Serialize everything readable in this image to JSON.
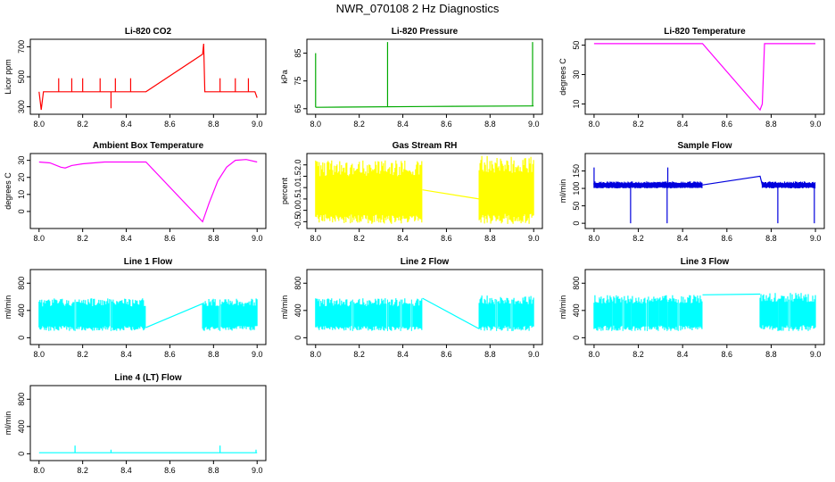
{
  "figure": {
    "title": "NWR_070108  2 Hz Diagnostics"
  },
  "chart_data": [
    {
      "id": "li820-co2",
      "type": "line",
      "title": "Li-820 CO2",
      "ylabel": "Licor ppm",
      "color": "#ff0000",
      "xlim": [
        7.96,
        9.04
      ],
      "ylim": [
        250,
        750
      ],
      "xticks": [
        8.0,
        8.2,
        8.4,
        8.6,
        8.8,
        9.0
      ],
      "xtick_labels": [
        "8.0",
        "8.2",
        "8.4",
        "8.6",
        "8.8",
        "9.0"
      ],
      "yticks": [
        300,
        500,
        700
      ],
      "ytick_labels": [
        "300",
        "500",
        "700"
      ],
      "series": [
        {
          "name": "CO2",
          "x": [
            8.0,
            8.01,
            8.02,
            8.49,
            8.75,
            8.755,
            8.76,
            8.99,
            9.0
          ],
          "y": [
            400,
            280,
            400,
            400,
            650,
            720,
            400,
            400,
            360
          ]
        }
      ],
      "spikes": [
        {
          "x": 8.09,
          "from": 400,
          "to": 490
        },
        {
          "x": 8.15,
          "from": 400,
          "to": 490
        },
        {
          "x": 8.2,
          "from": 400,
          "to": 490
        },
        {
          "x": 8.28,
          "from": 400,
          "to": 490
        },
        {
          "x": 8.33,
          "from": 400,
          "to": 290
        },
        {
          "x": 8.35,
          "from": 400,
          "to": 490
        },
        {
          "x": 8.42,
          "from": 400,
          "to": 490
        },
        {
          "x": 8.83,
          "from": 400,
          "to": 490
        },
        {
          "x": 8.9,
          "from": 400,
          "to": 490
        },
        {
          "x": 8.96,
          "from": 400,
          "to": 490
        }
      ]
    },
    {
      "id": "li820-pressure",
      "type": "line",
      "title": "Li-820 Pressure",
      "ylabel": "kPa",
      "color": "#00aa00",
      "xlim": [
        7.96,
        9.04
      ],
      "ylim": [
        63,
        90
      ],
      "xticks": [
        8.0,
        8.2,
        8.4,
        8.6,
        8.8,
        9.0
      ],
      "xtick_labels": [
        "8.0",
        "8.2",
        "8.4",
        "8.6",
        "8.8",
        "9.0"
      ],
      "yticks": [
        65,
        75,
        85
      ],
      "ytick_labels": [
        "65",
        "75",
        "85"
      ],
      "series": [
        {
          "name": "Pressure",
          "x": [
            8.0,
            8.02,
            8.5,
            8.99,
            9.0
          ],
          "y": [
            65.5,
            65.5,
            65.8,
            66.0,
            66.0
          ]
        }
      ],
      "spikes": [
        {
          "x": 8.0,
          "from": 65.5,
          "to": 85
        },
        {
          "x": 8.33,
          "from": 65.6,
          "to": 89
        },
        {
          "x": 8.995,
          "from": 66,
          "to": 89
        }
      ]
    },
    {
      "id": "li820-temperature",
      "type": "line",
      "title": "Li-820 Temperature",
      "ylabel": "degrees C",
      "color": "#ff00ff",
      "xlim": [
        7.96,
        9.04
      ],
      "ylim": [
        3,
        54
      ],
      "xticks": [
        8.0,
        8.2,
        8.4,
        8.6,
        8.8,
        9.0
      ],
      "xtick_labels": [
        "8.0",
        "8.2",
        "8.4",
        "8.6",
        "8.8",
        "9.0"
      ],
      "yticks": [
        10,
        30,
        50
      ],
      "ytick_labels": [
        "10",
        "30",
        "50"
      ],
      "series": [
        {
          "name": "Temperature",
          "x": [
            8.0,
            8.49,
            8.75,
            8.76,
            8.77,
            9.0
          ],
          "y": [
            51,
            51,
            6,
            10,
            51,
            51
          ]
        }
      ]
    },
    {
      "id": "ambient-box-temperature",
      "type": "line",
      "title": "Ambient Box Temperature",
      "ylabel": "degrees C",
      "color": "#ff00ff",
      "xlim": [
        7.96,
        9.04
      ],
      "ylim": [
        -10,
        34
      ],
      "xticks": [
        8.0,
        8.2,
        8.4,
        8.6,
        8.8,
        9.0
      ],
      "xtick_labels": [
        "8.0",
        "8.2",
        "8.4",
        "8.6",
        "8.8",
        "9.0"
      ],
      "yticks": [
        0,
        10,
        20,
        30
      ],
      "ytick_labels": [
        "0",
        "10",
        "20",
        "30"
      ],
      "series": [
        {
          "name": "Temperature",
          "x": [
            8.0,
            8.05,
            8.1,
            8.12,
            8.15,
            8.2,
            8.3,
            8.4,
            8.49,
            8.75,
            8.78,
            8.82,
            8.86,
            8.9,
            8.95,
            9.0
          ],
          "y": [
            29,
            28.5,
            26,
            25.5,
            27,
            28,
            29,
            29,
            29,
            -6,
            5,
            18,
            26,
            30,
            30.5,
            29
          ]
        }
      ]
    },
    {
      "id": "gas-stream-rh",
      "type": "line",
      "title": "Gas Stream RH",
      "ylabel": "percent",
      "color": "#ffff00",
      "xlim": [
        7.96,
        9.04
      ],
      "ylim": [
        -0.8,
        2.5
      ],
      "xticks": [
        8.0,
        8.2,
        8.4,
        8.6,
        8.8,
        9.0
      ],
      "xtick_labels": [
        "8.0",
        "8.2",
        "8.4",
        "8.6",
        "8.8",
        "9.0"
      ],
      "yticks": [
        -0.5,
        0.0,
        0.5,
        1.0,
        1.5,
        2.0
      ],
      "ytick_labels": [
        "-0.5",
        "0.0",
        "0.5",
        "1.0",
        "1.5",
        "2.0"
      ],
      "series": [
        {
          "name": "RH",
          "x": [
            8.49,
            8.75
          ],
          "y": [
            0.9,
            0.5
          ]
        }
      ],
      "bands": [
        {
          "x_start": 8.0,
          "x_end": 8.49,
          "low": -0.6,
          "high": 2.2
        },
        {
          "x_start": 8.75,
          "x_end": 9.0,
          "low": -0.6,
          "high": 2.4
        }
      ]
    },
    {
      "id": "sample-flow",
      "type": "line",
      "title": "Sample Flow",
      "ylabel": "ml/min",
      "color": "#0000dd",
      "xlim": [
        7.96,
        9.04
      ],
      "ylim": [
        -15,
        200
      ],
      "xticks": [
        8.0,
        8.2,
        8.4,
        8.6,
        8.8,
        9.0
      ],
      "xtick_labels": [
        "8.0",
        "8.2",
        "8.4",
        "8.6",
        "8.8",
        "9.0"
      ],
      "yticks": [
        0,
        50,
        100,
        150
      ],
      "ytick_labels": [
        "0",
        "50",
        "100",
        "150"
      ],
      "series": [
        {
          "name": "Flow",
          "x": [
            8.0,
            8.49,
            8.75,
            8.76,
            9.0
          ],
          "y": [
            110,
            110,
            135,
            110,
            110
          ]
        }
      ],
      "bands": [
        {
          "x_start": 8.0,
          "x_end": 8.49,
          "low": 100,
          "high": 120
        },
        {
          "x_start": 8.76,
          "x_end": 9.0,
          "low": 100,
          "high": 120
        }
      ],
      "spikes": [
        {
          "x": 8.0,
          "from": 110,
          "to": 160
        },
        {
          "x": 8.165,
          "from": 110,
          "to": 0
        },
        {
          "x": 8.33,
          "from": 110,
          "to": 0
        },
        {
          "x": 8.333,
          "from": 110,
          "to": 160
        },
        {
          "x": 8.83,
          "from": 110,
          "to": 0
        },
        {
          "x": 8.995,
          "from": 110,
          "to": 0
        }
      ]
    },
    {
      "id": "line-1-flow",
      "type": "line",
      "title": "Line 1 Flow",
      "ylabel": "ml/min",
      "color": "#00ffff",
      "xlim": [
        7.96,
        9.04
      ],
      "ylim": [
        -100,
        1000
      ],
      "xticks": [
        8.0,
        8.2,
        8.4,
        8.6,
        8.8,
        9.0
      ],
      "xtick_labels": [
        "8.0",
        "8.2",
        "8.4",
        "8.6",
        "8.8",
        "9.0"
      ],
      "yticks": [
        0,
        400,
        800
      ],
      "ytick_labels": [
        "0",
        "400",
        "800"
      ],
      "series": [
        {
          "name": "Flow",
          "x": [
            8.49,
            8.75
          ],
          "y": [
            150,
            500
          ]
        }
      ],
      "bands": [
        {
          "x_start": 8.0,
          "x_end": 8.49,
          "low": 100,
          "high": 580
        },
        {
          "x_start": 8.75,
          "x_end": 9.0,
          "low": 100,
          "high": 580
        }
      ],
      "gaps": [
        8.165,
        8.33,
        8.83
      ]
    },
    {
      "id": "line-2-flow",
      "type": "line",
      "title": "Line 2 Flow",
      "ylabel": "ml/min",
      "color": "#00ffff",
      "xlim": [
        7.96,
        9.04
      ],
      "ylim": [
        -100,
        1000
      ],
      "xticks": [
        8.0,
        8.2,
        8.4,
        8.6,
        8.8,
        9.0
      ],
      "xtick_labels": [
        "8.0",
        "8.2",
        "8.4",
        "8.6",
        "8.8",
        "9.0"
      ],
      "yticks": [
        0,
        400,
        800
      ],
      "ytick_labels": [
        "0",
        "400",
        "800"
      ],
      "series": [
        {
          "name": "Flow",
          "x": [
            8.49,
            8.75
          ],
          "y": [
            580,
            130
          ]
        }
      ],
      "bands": [
        {
          "x_start": 8.0,
          "x_end": 8.49,
          "low": 100,
          "high": 580
        },
        {
          "x_start": 8.75,
          "x_end": 9.0,
          "low": 100,
          "high": 620
        }
      ],
      "gaps": [
        8.17,
        8.33,
        8.39,
        8.44,
        8.83,
        8.9
      ]
    },
    {
      "id": "line-3-flow",
      "type": "line",
      "title": "Line 3 Flow",
      "ylabel": "ml/min",
      "color": "#00ffff",
      "xlim": [
        7.96,
        9.04
      ],
      "ylim": [
        -100,
        1000
      ],
      "xticks": [
        8.0,
        8.2,
        8.4,
        8.6,
        8.8,
        9.0
      ],
      "xtick_labels": [
        "8.0",
        "8.2",
        "8.4",
        "8.6",
        "8.8",
        "9.0"
      ],
      "yticks": [
        0,
        400,
        800
      ],
      "ytick_labels": [
        "0",
        "400",
        "800"
      ],
      "series": [
        {
          "name": "Flow",
          "x": [
            8.49,
            8.75
          ],
          "y": [
            630,
            640
          ]
        }
      ],
      "bands": [
        {
          "x_start": 8.0,
          "x_end": 8.49,
          "low": 100,
          "high": 630
        },
        {
          "x_start": 8.75,
          "x_end": 9.0,
          "low": 100,
          "high": 660
        }
      ],
      "gaps": [
        8.08,
        8.13,
        8.17,
        8.24,
        8.29,
        8.33,
        8.38,
        8.83,
        8.88
      ]
    },
    {
      "id": "line-4-lt-flow",
      "type": "line",
      "title": "Line 4 (LT) Flow",
      "ylabel": "ml/min",
      "color": "#00ffff",
      "xlim": [
        7.96,
        9.04
      ],
      "ylim": [
        -100,
        1000
      ],
      "xticks": [
        8.0,
        8.2,
        8.4,
        8.6,
        8.8,
        9.0
      ],
      "xtick_labels": [
        "8.0",
        "8.2",
        "8.4",
        "8.6",
        "8.8",
        "9.0"
      ],
      "yticks": [
        0,
        400,
        800
      ],
      "ytick_labels": [
        "0",
        "400",
        "800"
      ],
      "series": [
        {
          "name": "Flow",
          "x": [
            8.0,
            9.0
          ],
          "y": [
            15,
            15
          ]
        }
      ],
      "spikes": [
        {
          "x": 8.165,
          "from": 15,
          "to": 120
        },
        {
          "x": 8.33,
          "from": 15,
          "to": 60
        },
        {
          "x": 8.83,
          "from": 15,
          "to": 120
        },
        {
          "x": 8.995,
          "from": 15,
          "to": 60
        }
      ]
    }
  ]
}
